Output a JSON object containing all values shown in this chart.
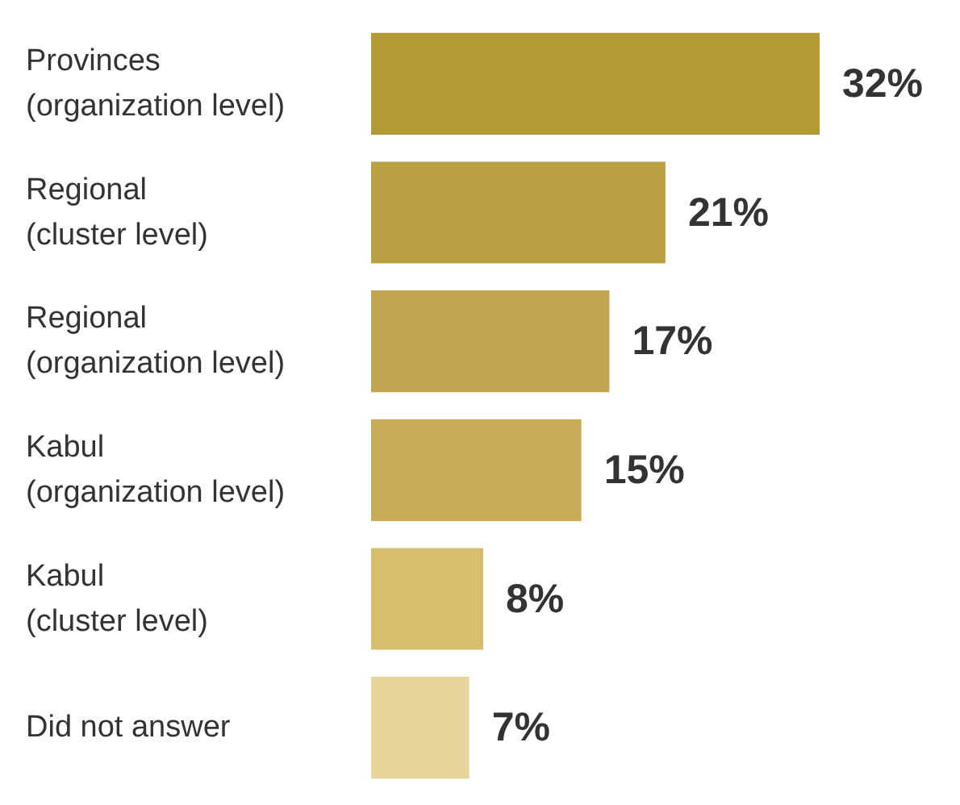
{
  "chart_data": {
    "type": "bar",
    "orientation": "horizontal",
    "categories": [
      "Provinces\n(organization level)",
      "Regional\n(cluster level)",
      "Regional\n(organization level)",
      "Kabul\n(organization level)",
      "Kabul\n(cluster level)",
      "Did not answer"
    ],
    "values": [
      32,
      21,
      17,
      15,
      8,
      7
    ],
    "value_labels": [
      "32%",
      "21%",
      "17%",
      "15%",
      "8%",
      "7%"
    ],
    "colors": [
      "#b49a35",
      "#bb9f45",
      "#c2a550",
      "#c9ac58",
      "#d8bd6e",
      "#e8d49a"
    ]
  }
}
